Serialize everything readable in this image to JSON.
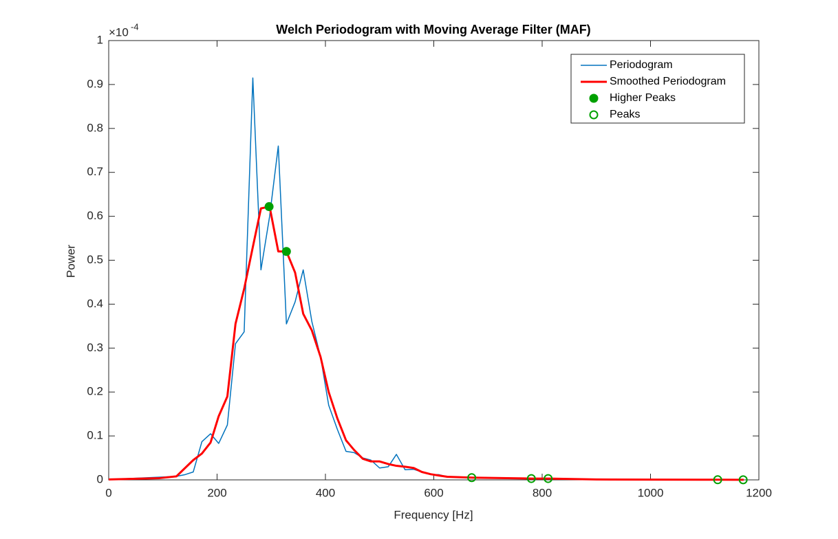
{
  "chart_data": {
    "type": "line",
    "title": "Welch Periodogram with Moving Average Filter (MAF)",
    "x_label": "Frequency [Hz]",
    "y_label": "Power",
    "y_multiplier": {
      "base": "×10",
      "exponent": "-4"
    },
    "xlim": [
      0,
      1200
    ],
    "xticks": [
      0,
      200,
      400,
      600,
      800,
      1000,
      1200
    ],
    "ylim": [
      0,
      1
    ],
    "yticks": [
      0,
      0.1,
      0.2,
      0.3,
      0.4,
      0.5,
      0.6,
      0.7,
      0.8,
      0.9,
      1
    ],
    "legend": "top-right",
    "series": [
      {
        "name": "Periodogram",
        "color": "#0072bd",
        "style": "line",
        "width": 1.5,
        "x": [
          0,
          125,
          141,
          156,
          172,
          188,
          203,
          219,
          234,
          250,
          266,
          281,
          297,
          313,
          328,
          344,
          359,
          375,
          391,
          406,
          422,
          438,
          453,
          469,
          484,
          500,
          516,
          531,
          547,
          563,
          578,
          594,
          609,
          625,
          700,
          800,
          900,
          1000,
          1100,
          1172
        ],
        "values": [
          0.001,
          0.008,
          0.012,
          0.018,
          0.087,
          0.105,
          0.083,
          0.125,
          0.31,
          0.337,
          0.915,
          0.478,
          0.6,
          0.76,
          0.355,
          0.405,
          0.478,
          0.36,
          0.28,
          0.17,
          0.115,
          0.065,
          0.062,
          0.05,
          0.045,
          0.027,
          0.03,
          0.058,
          0.023,
          0.024,
          0.018,
          0.012,
          0.012,
          0.007,
          0.005,
          0.003,
          0.001,
          0.0005,
          0.0003,
          0.0002
        ]
      },
      {
        "name": "Smoothed Periodogram",
        "color": "#ff0000",
        "style": "line",
        "width": 3,
        "x": [
          0,
          94,
          125,
          156,
          172,
          188,
          203,
          219,
          234,
          250,
          266,
          281,
          297,
          313,
          328,
          344,
          359,
          375,
          391,
          406,
          422,
          438,
          453,
          469,
          484,
          500,
          516,
          531,
          547,
          563,
          578,
          594,
          609,
          625,
          672,
          781,
          813,
          900,
          1000,
          1125,
          1172
        ],
        "values": [
          0.001,
          0.004,
          0.008,
          0.045,
          0.06,
          0.085,
          0.145,
          0.19,
          0.355,
          0.435,
          0.53,
          0.618,
          0.622,
          0.52,
          0.52,
          0.472,
          0.378,
          0.34,
          0.28,
          0.2,
          0.14,
          0.09,
          0.068,
          0.048,
          0.042,
          0.042,
          0.036,
          0.032,
          0.03,
          0.027,
          0.018,
          0.013,
          0.01,
          0.007,
          0.005,
          0.003,
          0.003,
          0.001,
          0.0005,
          0.0003,
          0.0002
        ]
      },
      {
        "name": "Higher Peaks",
        "color": "#00a000",
        "style": "filled-circle",
        "x": [
          296,
          328
        ],
        "values": [
          0.622,
          0.52
        ]
      },
      {
        "name": "Peaks",
        "color": "#00a000",
        "style": "open-circle",
        "x": [
          670,
          780,
          811,
          1124,
          1171
        ],
        "values": [
          0.005,
          0.003,
          0.003,
          0.0003,
          0.0002
        ]
      }
    ]
  }
}
